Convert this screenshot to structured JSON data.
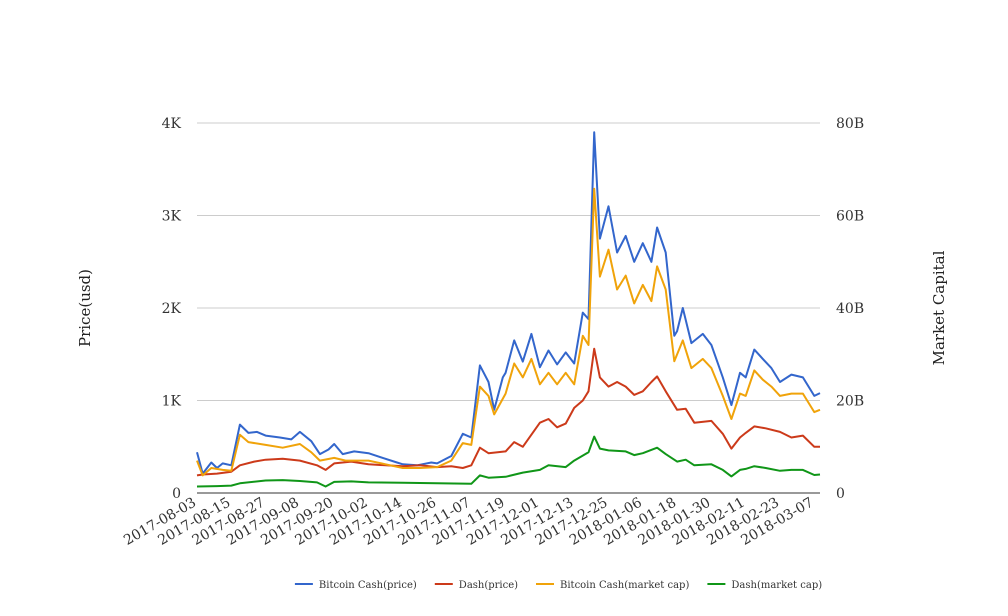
{
  "chart_data": {
    "type": "line",
    "title": "",
    "xlabel": "",
    "ylabel": "Price(usd)",
    "y2label": "Market Capital",
    "x_start": "2017-08-03",
    "x_end": "2018-03-09",
    "x_ticks": [
      "2017-08-03",
      "2017-08-15",
      "2017-08-27",
      "2017-09-08",
      "2017-09-20",
      "2017-10-02",
      "2017-10-14",
      "2017-10-26",
      "2017-11-07",
      "2017-11-19",
      "2017-12-01",
      "2017-12-13",
      "2017-12-25",
      "2018-01-06",
      "2018-01-18",
      "2018-01-30",
      "2018-02-11",
      "2018-02-23",
      "2018-03-07"
    ],
    "ylim": [
      0,
      4000
    ],
    "y_ticks": [
      {
        "value": 0,
        "label": "0"
      },
      {
        "value": 1000,
        "label": "1K"
      },
      {
        "value": 2000,
        "label": "2K"
      },
      {
        "value": 3000,
        "label": "3K"
      },
      {
        "value": 4000,
        "label": "4K"
      }
    ],
    "y2lim": [
      0,
      80000000000
    ],
    "y2_ticks": [
      {
        "value": 0,
        "label": "0"
      },
      {
        "value": 20000000000,
        "label": "20B"
      },
      {
        "value": 40000000000,
        "label": "40B"
      },
      {
        "value": 60000000000,
        "label": "60B"
      },
      {
        "value": 80000000000,
        "label": "80B"
      }
    ],
    "grid": true,
    "legend_position": "bottom",
    "series": [
      {
        "name": "Bitcoin Cash(price)",
        "axis": "left",
        "color": "#3366cc",
        "points": [
          [
            "2017-08-03",
            440
          ],
          [
            "2017-08-05",
            210
          ],
          [
            "2017-08-08",
            330
          ],
          [
            "2017-08-10",
            270
          ],
          [
            "2017-08-12",
            320
          ],
          [
            "2017-08-15",
            300
          ],
          [
            "2017-08-18",
            740
          ],
          [
            "2017-08-21",
            650
          ],
          [
            "2017-08-24",
            660
          ],
          [
            "2017-08-27",
            620
          ],
          [
            "2017-09-01",
            600
          ],
          [
            "2017-09-05",
            580
          ],
          [
            "2017-09-08",
            660
          ],
          [
            "2017-09-12",
            560
          ],
          [
            "2017-09-15",
            420
          ],
          [
            "2017-09-18",
            470
          ],
          [
            "2017-09-20",
            530
          ],
          [
            "2017-09-23",
            420
          ],
          [
            "2017-09-27",
            450
          ],
          [
            "2017-10-02",
            430
          ],
          [
            "2017-10-07",
            380
          ],
          [
            "2017-10-12",
            330
          ],
          [
            "2017-10-14",
            310
          ],
          [
            "2017-10-19",
            300
          ],
          [
            "2017-10-24",
            330
          ],
          [
            "2017-10-26",
            320
          ],
          [
            "2017-10-31",
            400
          ],
          [
            "2017-11-04",
            640
          ],
          [
            "2017-11-07",
            600
          ],
          [
            "2017-11-10",
            1380
          ],
          [
            "2017-11-13",
            1200
          ],
          [
            "2017-11-15",
            900
          ],
          [
            "2017-11-18",
            1250
          ],
          [
            "2017-11-19",
            1300
          ],
          [
            "2017-11-22",
            1650
          ],
          [
            "2017-11-25",
            1420
          ],
          [
            "2017-11-28",
            1720
          ],
          [
            "2017-12-01",
            1360
          ],
          [
            "2017-12-04",
            1540
          ],
          [
            "2017-12-07",
            1390
          ],
          [
            "2017-12-10",
            1520
          ],
          [
            "2017-12-13",
            1400
          ],
          [
            "2017-12-16",
            1950
          ],
          [
            "2017-12-18",
            1880
          ],
          [
            "2017-12-20",
            3900
          ],
          [
            "2017-12-22",
            2750
          ],
          [
            "2017-12-25",
            3100
          ],
          [
            "2017-12-28",
            2600
          ],
          [
            "2017-12-31",
            2780
          ],
          [
            "2018-01-03",
            2500
          ],
          [
            "2018-01-06",
            2700
          ],
          [
            "2018-01-09",
            2500
          ],
          [
            "2018-01-11",
            2870
          ],
          [
            "2018-01-14",
            2600
          ],
          [
            "2018-01-17",
            1700
          ],
          [
            "2018-01-18",
            1750
          ],
          [
            "2018-01-20",
            2000
          ],
          [
            "2018-01-23",
            1620
          ],
          [
            "2018-01-27",
            1720
          ],
          [
            "2018-01-30",
            1600
          ],
          [
            "2018-02-03",
            1250
          ],
          [
            "2018-02-06",
            950
          ],
          [
            "2018-02-09",
            1300
          ],
          [
            "2018-02-11",
            1250
          ],
          [
            "2018-02-14",
            1550
          ],
          [
            "2018-02-17",
            1450
          ],
          [
            "2018-02-20",
            1350
          ],
          [
            "2018-02-23",
            1200
          ],
          [
            "2018-02-27",
            1280
          ],
          [
            "2018-03-03",
            1250
          ],
          [
            "2018-03-07",
            1050
          ],
          [
            "2018-03-09",
            1080
          ]
        ]
      },
      {
        "name": "Dash(price)",
        "axis": "left",
        "color": "#cc3a1a",
        "points": [
          [
            "2017-08-03",
            190
          ],
          [
            "2017-08-05",
            200
          ],
          [
            "2017-08-10",
            210
          ],
          [
            "2017-08-15",
            230
          ],
          [
            "2017-08-18",
            300
          ],
          [
            "2017-08-23",
            340
          ],
          [
            "2017-08-27",
            360
          ],
          [
            "2017-09-02",
            370
          ],
          [
            "2017-09-08",
            350
          ],
          [
            "2017-09-14",
            300
          ],
          [
            "2017-09-17",
            250
          ],
          [
            "2017-09-20",
            320
          ],
          [
            "2017-09-26",
            340
          ],
          [
            "2017-10-02",
            310
          ],
          [
            "2017-10-08",
            300
          ],
          [
            "2017-10-14",
            290
          ],
          [
            "2017-10-20",
            300
          ],
          [
            "2017-10-26",
            280
          ],
          [
            "2017-10-31",
            290
          ],
          [
            "2017-11-04",
            270
          ],
          [
            "2017-11-07",
            300
          ],
          [
            "2017-11-10",
            490
          ],
          [
            "2017-11-13",
            430
          ],
          [
            "2017-11-19",
            450
          ],
          [
            "2017-11-22",
            550
          ],
          [
            "2017-11-25",
            500
          ],
          [
            "2017-12-01",
            760
          ],
          [
            "2017-12-04",
            800
          ],
          [
            "2017-12-07",
            710
          ],
          [
            "2017-12-10",
            750
          ],
          [
            "2017-12-13",
            920
          ],
          [
            "2017-12-16",
            1000
          ],
          [
            "2017-12-18",
            1100
          ],
          [
            "2017-12-20",
            1560
          ],
          [
            "2017-12-22",
            1250
          ],
          [
            "2017-12-25",
            1150
          ],
          [
            "2017-12-28",
            1200
          ],
          [
            "2017-12-31",
            1150
          ],
          [
            "2018-01-03",
            1060
          ],
          [
            "2018-01-06",
            1100
          ],
          [
            "2018-01-09",
            1200
          ],
          [
            "2018-01-11",
            1260
          ],
          [
            "2018-01-14",
            1100
          ],
          [
            "2018-01-18",
            900
          ],
          [
            "2018-01-21",
            910
          ],
          [
            "2018-01-24",
            760
          ],
          [
            "2018-01-30",
            780
          ],
          [
            "2018-02-03",
            640
          ],
          [
            "2018-02-06",
            480
          ],
          [
            "2018-02-09",
            600
          ],
          [
            "2018-02-11",
            650
          ],
          [
            "2018-02-14",
            720
          ],
          [
            "2018-02-18",
            700
          ],
          [
            "2018-02-23",
            660
          ],
          [
            "2018-02-27",
            600
          ],
          [
            "2018-03-03",
            620
          ],
          [
            "2018-03-07",
            500
          ],
          [
            "2018-03-09",
            500
          ]
        ]
      },
      {
        "name": "Bitcoin Cash(market cap)",
        "axis": "right",
        "color": "#f0a30a",
        "points": [
          [
            "2017-08-03",
            7000000000
          ],
          [
            "2017-08-05",
            3800000000
          ],
          [
            "2017-08-08",
            5400000000
          ],
          [
            "2017-08-12",
            5000000000
          ],
          [
            "2017-08-15",
            4800000000
          ],
          [
            "2017-08-18",
            12600000000
          ],
          [
            "2017-08-21",
            11000000000
          ],
          [
            "2017-08-27",
            10400000000
          ],
          [
            "2017-09-02",
            9800000000
          ],
          [
            "2017-09-08",
            10600000000
          ],
          [
            "2017-09-12",
            8800000000
          ],
          [
            "2017-09-15",
            7000000000
          ],
          [
            "2017-09-20",
            7600000000
          ],
          [
            "2017-09-24",
            7000000000
          ],
          [
            "2017-10-02",
            7000000000
          ],
          [
            "2017-10-08",
            6200000000
          ],
          [
            "2017-10-14",
            5400000000
          ],
          [
            "2017-10-20",
            5400000000
          ],
          [
            "2017-10-26",
            5600000000
          ],
          [
            "2017-10-31",
            7000000000
          ],
          [
            "2017-11-04",
            10800000000
          ],
          [
            "2017-11-07",
            10400000000
          ],
          [
            "2017-11-10",
            23000000000
          ],
          [
            "2017-11-13",
            21000000000
          ],
          [
            "2017-11-15",
            17000000000
          ],
          [
            "2017-11-19",
            21500000000
          ],
          [
            "2017-11-22",
            28000000000
          ],
          [
            "2017-11-25",
            25000000000
          ],
          [
            "2017-11-28",
            29000000000
          ],
          [
            "2017-12-01",
            23500000000
          ],
          [
            "2017-12-04",
            26000000000
          ],
          [
            "2017-12-07",
            23500000000
          ],
          [
            "2017-12-10",
            26000000000
          ],
          [
            "2017-12-13",
            23500000000
          ],
          [
            "2017-12-16",
            34000000000
          ],
          [
            "2017-12-18",
            32000000000
          ],
          [
            "2017-12-20",
            65800000000
          ],
          [
            "2017-12-22",
            46800000000
          ],
          [
            "2017-12-25",
            52600000000
          ],
          [
            "2017-12-28",
            44000000000
          ],
          [
            "2017-12-31",
            47000000000
          ],
          [
            "2018-01-03",
            41000000000
          ],
          [
            "2018-01-06",
            45000000000
          ],
          [
            "2018-01-09",
            41500000000
          ],
          [
            "2018-01-11",
            49000000000
          ],
          [
            "2018-01-14",
            44000000000
          ],
          [
            "2018-01-17",
            28500000000
          ],
          [
            "2018-01-20",
            33000000000
          ],
          [
            "2018-01-23",
            27000000000
          ],
          [
            "2018-01-27",
            29000000000
          ],
          [
            "2018-01-30",
            27000000000
          ],
          [
            "2018-02-03",
            21000000000
          ],
          [
            "2018-02-06",
            16000000000
          ],
          [
            "2018-02-09",
            21500000000
          ],
          [
            "2018-02-11",
            21000000000
          ],
          [
            "2018-02-14",
            26500000000
          ],
          [
            "2018-02-17",
            24500000000
          ],
          [
            "2018-02-20",
            23000000000
          ],
          [
            "2018-02-23",
            21000000000
          ],
          [
            "2018-02-27",
            21500000000
          ],
          [
            "2018-03-03",
            21500000000
          ],
          [
            "2018-03-07",
            17500000000
          ],
          [
            "2018-03-09",
            18000000000
          ]
        ]
      },
      {
        "name": "Dash(market cap)",
        "axis": "right",
        "color": "#109618",
        "points": [
          [
            "2017-08-03",
            1400000000
          ],
          [
            "2017-08-10",
            1500000000
          ],
          [
            "2017-08-15",
            1600000000
          ],
          [
            "2017-08-18",
            2100000000
          ],
          [
            "2017-08-27",
            2700000000
          ],
          [
            "2017-09-02",
            2800000000
          ],
          [
            "2017-09-08",
            2600000000
          ],
          [
            "2017-09-14",
            2300000000
          ],
          [
            "2017-09-17",
            1400000000
          ],
          [
            "2017-09-20",
            2400000000
          ],
          [
            "2017-09-26",
            2500000000
          ],
          [
            "2017-10-02",
            2300000000
          ],
          [
            "2017-10-14",
            2200000000
          ],
          [
            "2017-10-26",
            2100000000
          ],
          [
            "2017-11-07",
            2000000000
          ],
          [
            "2017-11-10",
            3800000000
          ],
          [
            "2017-11-13",
            3300000000
          ],
          [
            "2017-11-19",
            3500000000
          ],
          [
            "2017-11-25",
            4400000000
          ],
          [
            "2017-12-01",
            5000000000
          ],
          [
            "2017-12-04",
            6000000000
          ],
          [
            "2017-12-10",
            5600000000
          ],
          [
            "2017-12-13",
            7000000000
          ],
          [
            "2017-12-18",
            8800000000
          ],
          [
            "2017-12-20",
            12200000000
          ],
          [
            "2017-12-22",
            9600000000
          ],
          [
            "2017-12-25",
            9200000000
          ],
          [
            "2017-12-31",
            9000000000
          ],
          [
            "2018-01-03",
            8200000000
          ],
          [
            "2018-01-06",
            8600000000
          ],
          [
            "2018-01-11",
            9800000000
          ],
          [
            "2018-01-14",
            8400000000
          ],
          [
            "2018-01-18",
            6800000000
          ],
          [
            "2018-01-21",
            7200000000
          ],
          [
            "2018-01-24",
            6000000000
          ],
          [
            "2018-01-30",
            6200000000
          ],
          [
            "2018-02-03",
            5000000000
          ],
          [
            "2018-02-06",
            3600000000
          ],
          [
            "2018-02-09",
            5000000000
          ],
          [
            "2018-02-11",
            5200000000
          ],
          [
            "2018-02-14",
            5800000000
          ],
          [
            "2018-02-18",
            5400000000
          ],
          [
            "2018-02-23",
            4800000000
          ],
          [
            "2018-02-27",
            5000000000
          ],
          [
            "2018-03-03",
            5000000000
          ],
          [
            "2018-03-07",
            3900000000
          ],
          [
            "2018-03-09",
            4000000000
          ]
        ]
      }
    ]
  }
}
